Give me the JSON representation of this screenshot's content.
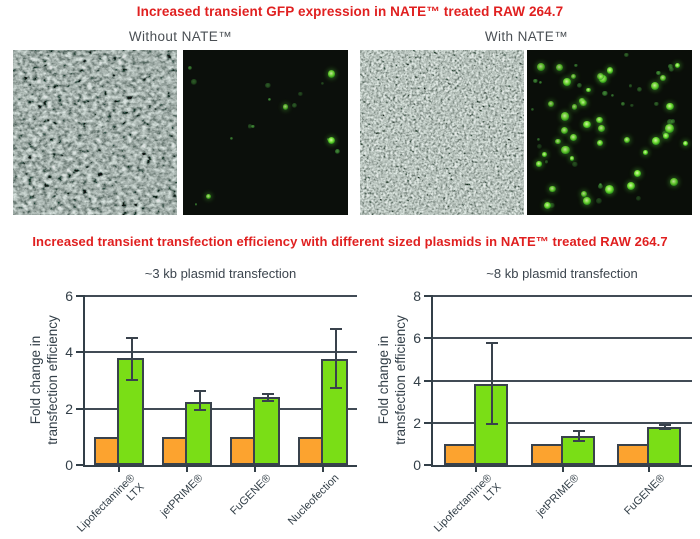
{
  "header": {
    "title1": "Increased transient GFP expression in NATE™ treated RAW 264.7",
    "title2": "Increased transient transfection efficiency with different sized plasmids in NATE™ treated RAW 264.7",
    "title_color": "#e02020"
  },
  "microscopy": {
    "without_label": "Without NATE™",
    "with_label": "With NATE™",
    "panels": [
      {
        "kind": "phase-contrast",
        "condition": "without-NATE"
      },
      {
        "kind": "gfp-fluorescence",
        "condition": "without-NATE",
        "dim_dots": 13,
        "bright_dots": 4
      },
      {
        "kind": "phase-contrast",
        "condition": "with-NATE"
      },
      {
        "kind": "gfp-fluorescence",
        "condition": "with-NATE",
        "dim_dots": 28,
        "bright_dots": 42
      }
    ],
    "gfp_color": "#4ee04e"
  },
  "chart_data": [
    {
      "type": "bar",
      "title": "~3 kb plasmid transfection",
      "ylabel": "Fold change in\ntransfection efficiency",
      "categories": [
        "Lipofectamine®\nLTX",
        "jetPRIME®",
        "FuGENE®",
        "Nucleofection"
      ],
      "series": [
        {
          "name": "orange-bars",
          "color": "#fca32f",
          "values": [
            1,
            1,
            1,
            1
          ]
        },
        {
          "name": "green-bars",
          "color": "#7ade16",
          "values": [
            3.8,
            2.25,
            2.4,
            3.75
          ],
          "error_low": [
            3.0,
            1.9,
            2.25,
            2.7
          ],
          "error_high": [
            4.55,
            2.65,
            2.55,
            4.85
          ]
        }
      ],
      "ylim": [
        0,
        6
      ],
      "yticks": [
        0,
        2,
        4,
        6
      ],
      "grid": true,
      "legend": "none"
    },
    {
      "type": "bar",
      "title": "~8 kb plasmid transfection",
      "ylabel": "Fold change in\ntransfection efficiency",
      "categories": [
        "Lipofectamine®\nLTX",
        "jetPRIME®",
        "FuGENE®"
      ],
      "series": [
        {
          "name": "orange-bars",
          "color": "#fca32f",
          "values": [
            1,
            1,
            1
          ]
        },
        {
          "name": "green-bars",
          "color": "#7ade16",
          "values": [
            3.85,
            1.35,
            1.78
          ],
          "error_low": [
            1.9,
            1.1,
            1.65
          ],
          "error_high": [
            5.8,
            1.65,
            1.95
          ]
        }
      ],
      "ylim": [
        0,
        8
      ],
      "yticks": [
        0,
        2,
        4,
        6,
        8
      ],
      "grid": true,
      "legend": "none"
    }
  ],
  "colors": {
    "axis": "#333f48",
    "gridline": "#414b55",
    "bar_border": "#39424c",
    "label_gray": "#4a4f54"
  }
}
